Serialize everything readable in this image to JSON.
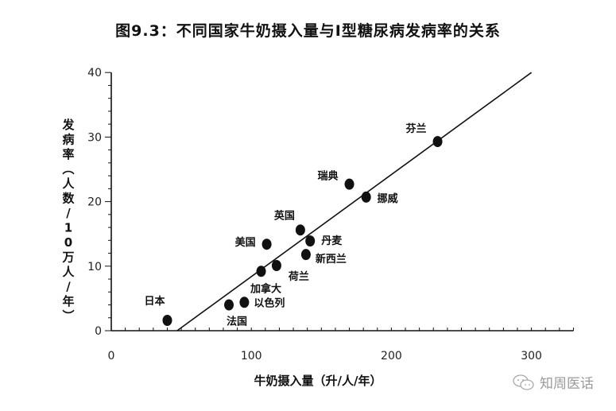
{
  "title": "图9.3：不同国家牛奶摄入量与I型糖尿病发病率的关系",
  "watermark": {
    "icon": "wechat-icon",
    "text": "知周医话"
  },
  "chart_data": {
    "type": "scatter",
    "title": "图9.3：不同国家牛奶摄入量与I型糖尿病发病率的关系",
    "xlabel": "牛奶摄入量（升/人/年）",
    "ylabel": "发病率（人数/10万人/年）",
    "xlim": [
      0,
      330
    ],
    "ylim": [
      0,
      40
    ],
    "xticks": [
      0,
      100,
      200,
      300
    ],
    "yticks": [
      0,
      10,
      20,
      30,
      40
    ],
    "grid": false,
    "points": [
      {
        "label": "日本",
        "x": 40,
        "y": 1.6
      },
      {
        "label": "法国",
        "x": 84,
        "y": 4.0
      },
      {
        "label": "以色列",
        "x": 95,
        "y": 4.4
      },
      {
        "label": "加拿大",
        "x": 107,
        "y": 9.2
      },
      {
        "label": "美国",
        "x": 111,
        "y": 13.4
      },
      {
        "label": "荷兰",
        "x": 118,
        "y": 10.1
      },
      {
        "label": "英国",
        "x": 135,
        "y": 15.6
      },
      {
        "label": "新西兰",
        "x": 139,
        "y": 11.8
      },
      {
        "label": "丹麦",
        "x": 142,
        "y": 13.9
      },
      {
        "label": "瑞典",
        "x": 170,
        "y": 22.7
      },
      {
        "label": "挪威",
        "x": 182,
        "y": 20.7
      },
      {
        "label": "芬兰",
        "x": 233,
        "y": 29.3
      }
    ],
    "trendline": {
      "x": [
        47,
        300
      ],
      "y": [
        0,
        40
      ]
    }
  }
}
